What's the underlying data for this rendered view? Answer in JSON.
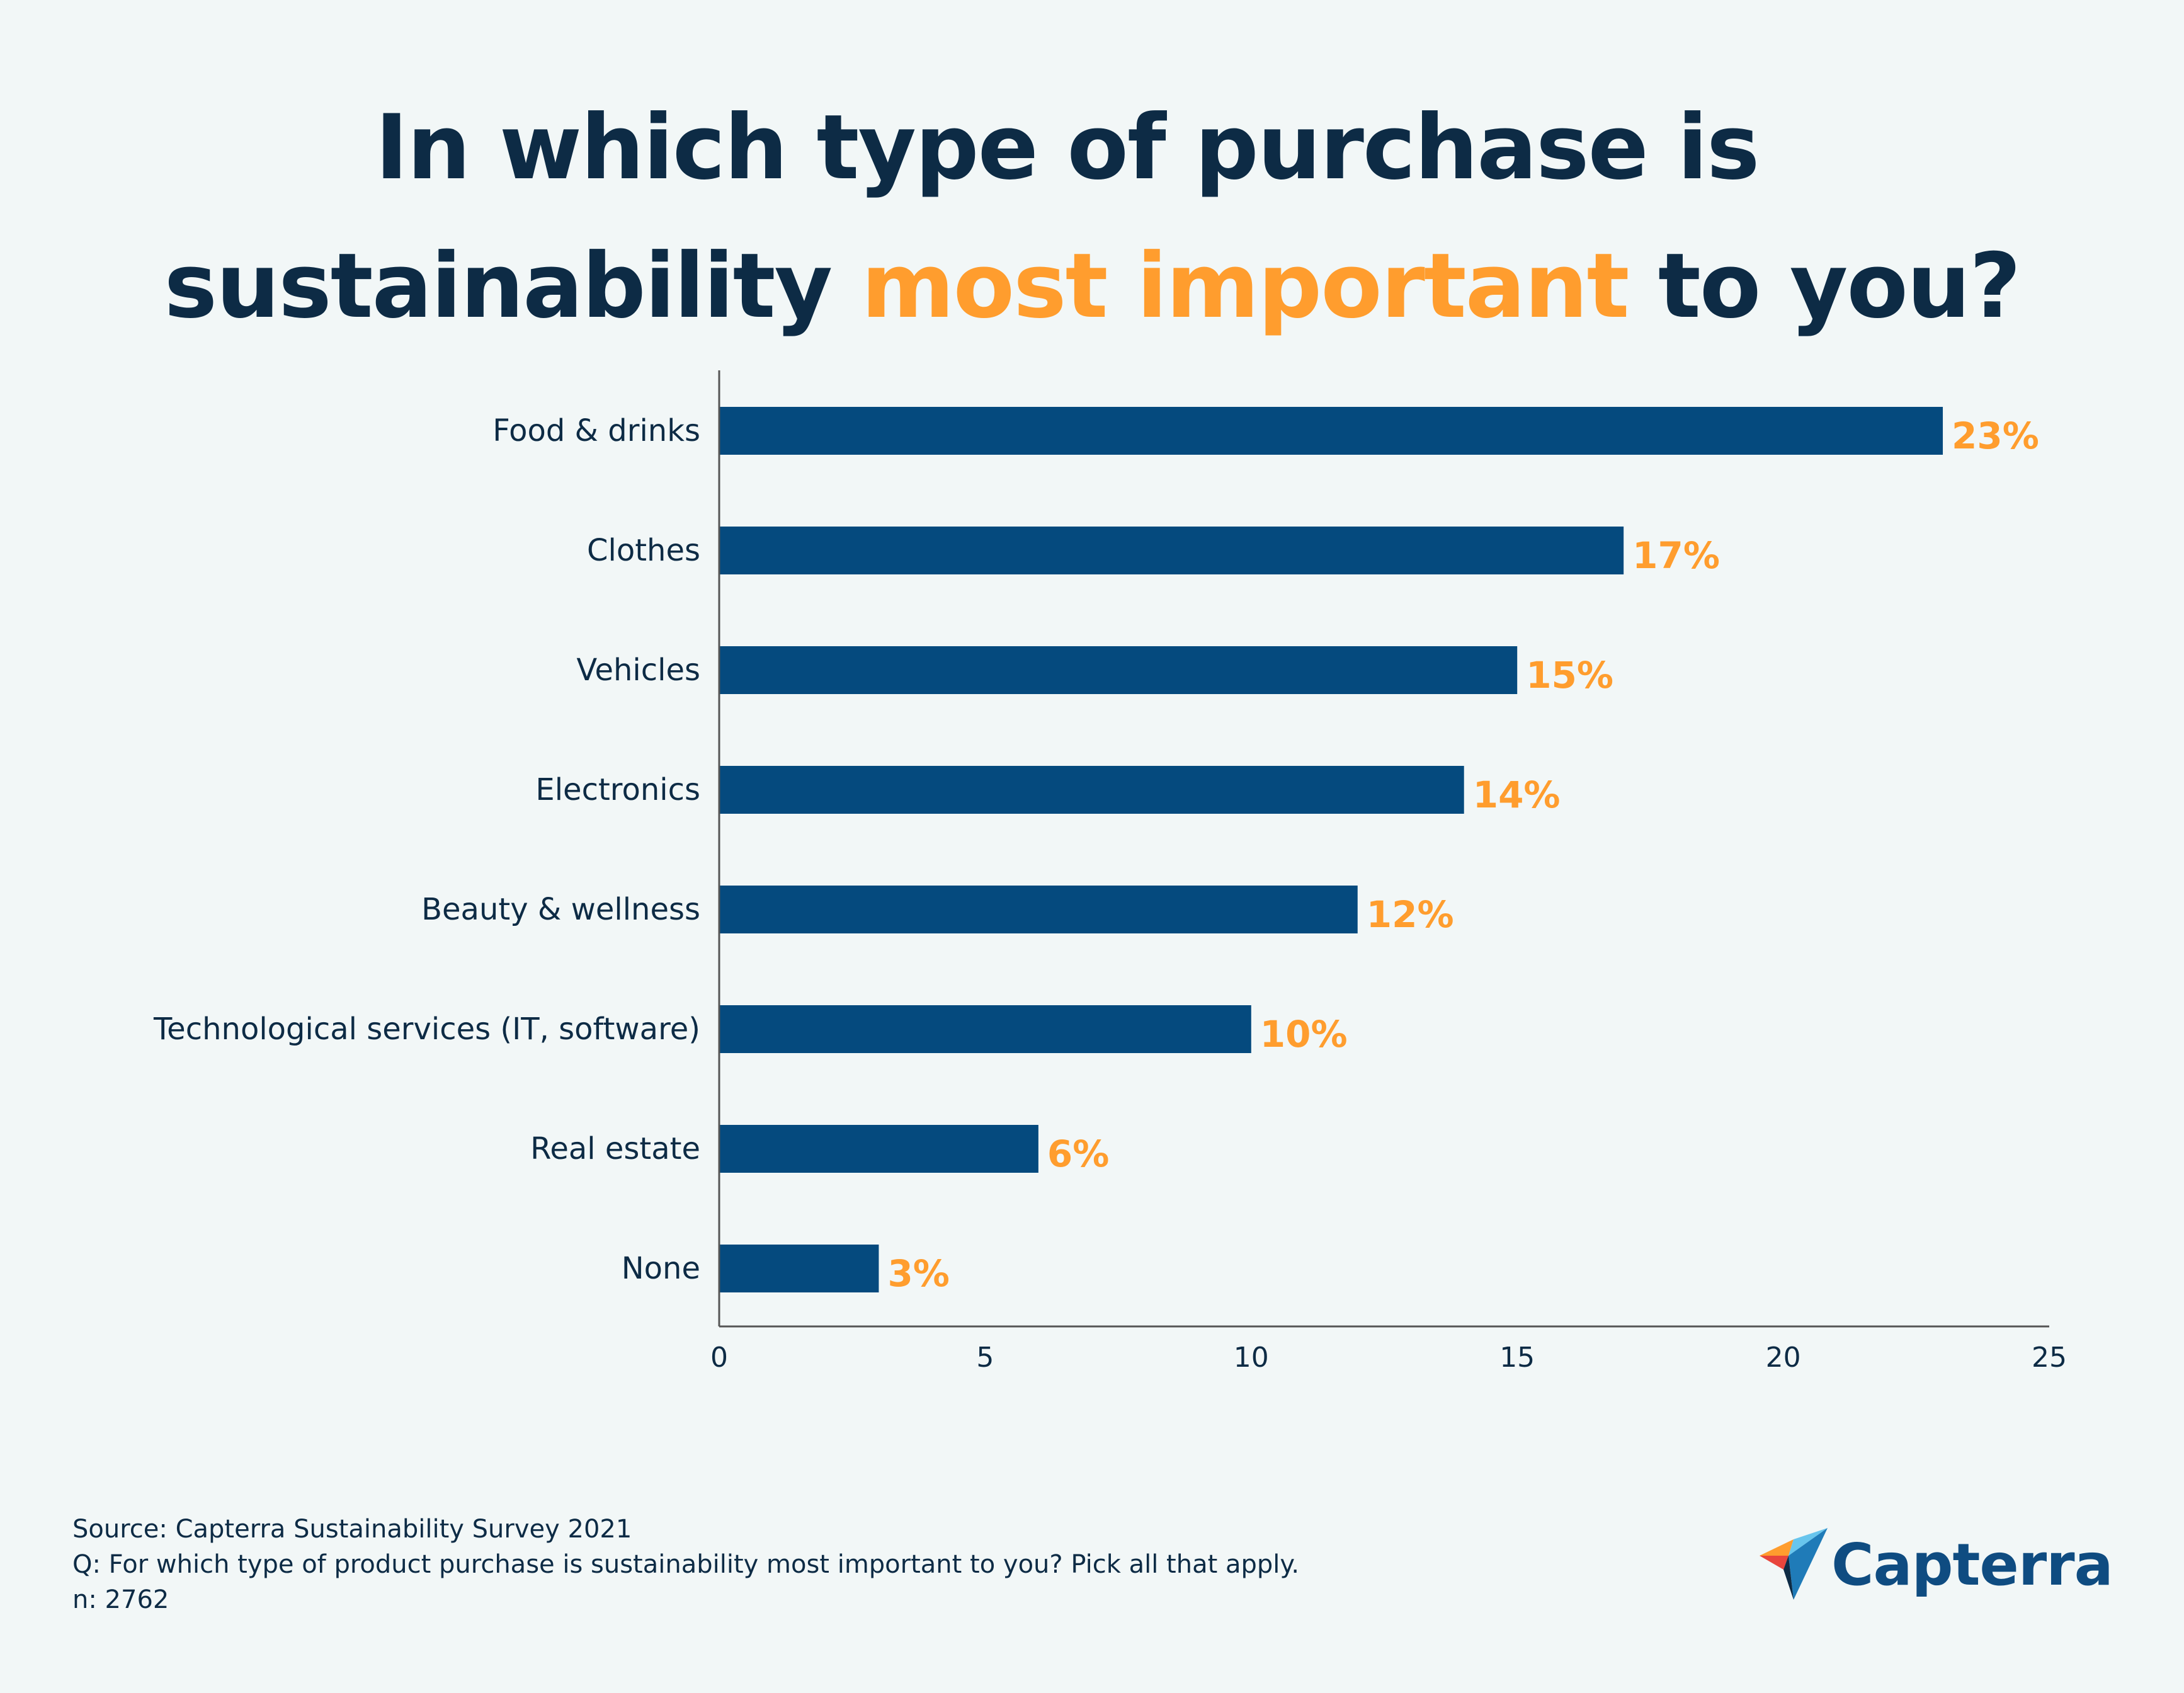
{
  "title": {
    "line1": "In which type of purchase is",
    "line2_pre": "sustainability ",
    "line2_highlight": "most important",
    "line2_post": " to you?"
  },
  "colors": {
    "bar": "#054a7e",
    "value_label": "#ff9d2e",
    "text": "#0d2b45",
    "axis": "#555555",
    "highlight": "#ff9d2e",
    "background": "#f2f7f7"
  },
  "chart_data": {
    "type": "bar",
    "orientation": "horizontal",
    "title": "In which type of purchase is sustainability most important to you?",
    "categories": [
      "Food & drinks",
      "Clothes",
      "Vehicles",
      "Electronics",
      "Beauty & wellness",
      "Technological services (IT, software)",
      "Real estate",
      "None"
    ],
    "values": [
      23,
      17,
      15,
      14,
      12,
      10,
      6,
      3
    ],
    "value_labels": [
      "23%",
      "17%",
      "15%",
      "14%",
      "12%",
      "10%",
      "6%",
      "3%"
    ],
    "xlim": [
      0,
      25
    ],
    "xticks": [
      0,
      5,
      10,
      15,
      20,
      25
    ],
    "xlabel": "",
    "ylabel": "",
    "grid": false,
    "legend": "none"
  },
  "source": {
    "line1": "Source: Capterra Sustainability Survey 2021",
    "line2": "Q: For which type of product purchase is sustainability most important to you? Pick all that apply.",
    "line3": "n: 2762"
  },
  "logo": {
    "text": "Capterra"
  }
}
